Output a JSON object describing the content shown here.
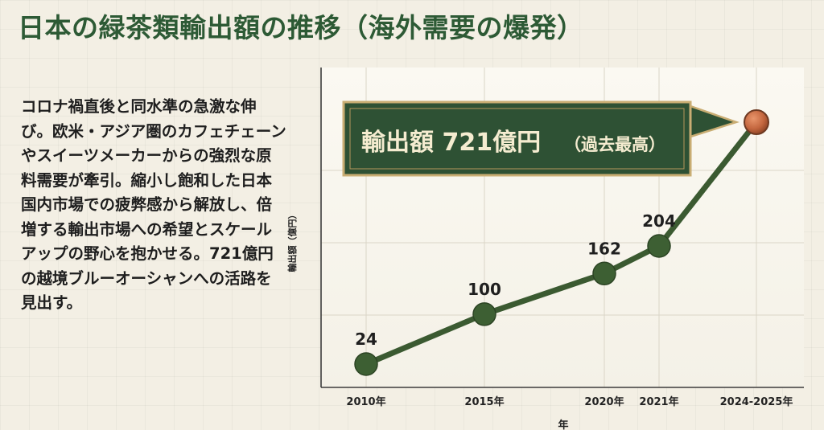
{
  "title": "日本の緑茶類輸出額の推移（海外需要の爆発）",
  "description": "コロナ禍直後と同水準の急激な伸び。欧米・アジア圏のカフェチェーンやスイーツメーカーからの強烈な原料需要が牽引。縮小し飽和した日本国内市場での疲弊感から解放し、倍増する輸出市場への希望とスケールアップの野心を抱かせる。721億円の越境ブルーオーシャンへの活路を見出す。",
  "chart_data": {
    "type": "line",
    "categories": [
      "2010年",
      "2015年",
      "2020年",
      "2021年",
      "2024-2025年"
    ],
    "values": [
      24,
      100,
      162,
      204,
      721
    ],
    "data_labels": [
      "24",
      "100",
      "162",
      "204",
      ""
    ],
    "xlabel": "年",
    "ylabel": "輸出額（億円）",
    "grid": true,
    "callout": {
      "main": "輸出額 721億円",
      "sub": "（過去最高）"
    },
    "colors": {
      "line": "#3b5a31",
      "marker": "#3d5f33",
      "highlight": "#c4673f",
      "callout_bg": "#2e5134",
      "callout_border": "#c9ad73",
      "callout_text": "#f5ecd0",
      "title": "#2d5a35"
    }
  }
}
